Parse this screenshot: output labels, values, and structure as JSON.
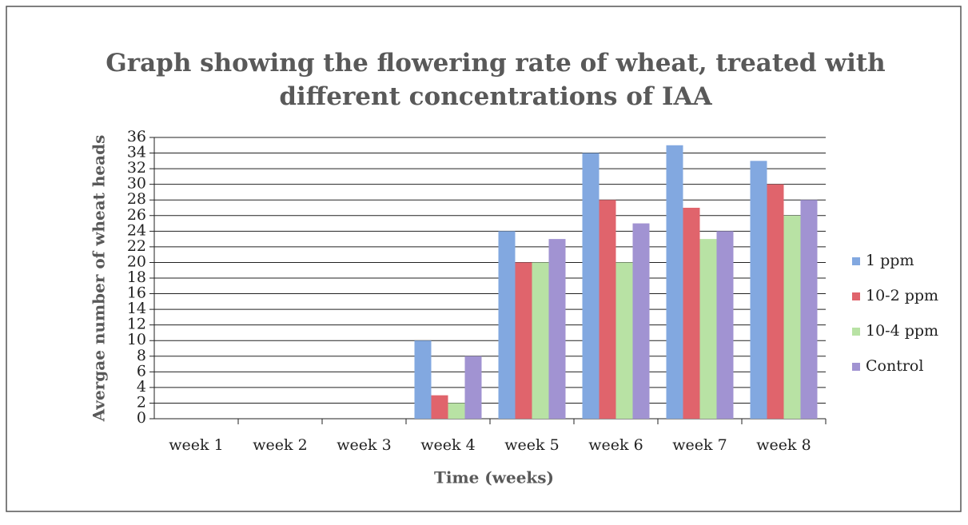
{
  "chart_data": {
    "type": "bar",
    "title": "Graph showing the flowering rate of wheat, treated with different concentrations of IAA",
    "xlabel": "Time (weeks)",
    "ylabel": "Avergae number of wheat heads",
    "categories": [
      "week 1",
      "week 2",
      "week 3",
      "week 4",
      "week 5",
      "week 6",
      "week 7",
      "week 8"
    ],
    "series": [
      {
        "name": "1 ppm",
        "color": "#82a8e0",
        "values": [
          0,
          0,
          0,
          10,
          24,
          34,
          35,
          33
        ]
      },
      {
        "name": "10-2 ppm",
        "color": "#e0646c",
        "values": [
          0,
          0,
          0,
          3,
          20,
          28,
          27,
          30
        ]
      },
      {
        "name": "10-4 ppm",
        "color": "#b8e2a4",
        "values": [
          0,
          0,
          0,
          2,
          20,
          20,
          23,
          26
        ]
      },
      {
        "name": "Control",
        "color": "#a193d2",
        "values": [
          0,
          0,
          0,
          8,
          23,
          25,
          24,
          28
        ]
      }
    ],
    "ylim": [
      0,
      36
    ],
    "yticks": [
      0,
      2,
      4,
      6,
      8,
      10,
      12,
      14,
      16,
      18,
      20,
      22,
      24,
      26,
      28,
      30,
      32,
      34,
      36
    ],
    "grid": true,
    "legend": "right"
  }
}
